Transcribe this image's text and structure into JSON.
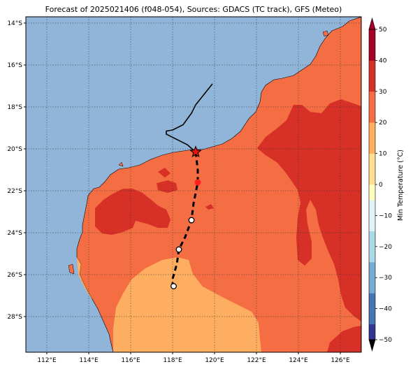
{
  "title": "Forecast of 2025021406 (f048-054), Sources: GDACS (TC track), GFS (Meteo)",
  "map": {
    "lon_range": [
      111,
      127
    ],
    "lat_range": [
      -29.7,
      -13.7
    ],
    "lon_ticks": [
      "112°E",
      "114°E",
      "116°E",
      "118°E",
      "120°E",
      "122°E",
      "124°E",
      "126°E"
    ],
    "lat_ticks": [
      "14°S",
      "16°S",
      "18°S",
      "20°S",
      "22°S",
      "24°S",
      "26°S",
      "28°S"
    ],
    "gridlines": true,
    "ocean_color": "#91b4d9"
  },
  "track": {
    "past_path": [
      [
        119.9,
        -16.9
      ],
      [
        119.1,
        -17.9
      ],
      [
        118.9,
        -18.3
      ],
      [
        118.5,
        -18.85
      ],
      [
        118.0,
        -19.1
      ],
      [
        117.7,
        -19.15
      ],
      [
        117.7,
        -19.3
      ],
      [
        118.7,
        -19.8
      ],
      [
        119.1,
        -20.15
      ]
    ],
    "forecast_path": [
      [
        119.1,
        -20.15
      ],
      [
        119.2,
        -21.0
      ],
      [
        119.2,
        -21.6
      ],
      [
        119.0,
        -22.6
      ],
      [
        118.9,
        -23.4
      ],
      [
        118.6,
        -24.2
      ],
      [
        118.3,
        -24.8
      ],
      [
        118.2,
        -25.5
      ],
      [
        118.0,
        -26.2
      ],
      [
        118.0,
        -26.6
      ]
    ],
    "current_position_marker": "red-star",
    "red_point": [
      119.2,
      -21.6
    ],
    "points": [
      [
        118.9,
        -23.4
      ],
      [
        118.3,
        -24.8
      ],
      [
        118.05,
        -26.55
      ]
    ]
  },
  "colorbar": {
    "label": "Min Temperature (°C)",
    "ticks": [
      "50",
      "40",
      "30",
      "20",
      "10",
      "0",
      "−10",
      "−20",
      "−30",
      "−40",
      "−50"
    ],
    "levels": [
      -50,
      -45,
      -40,
      -35,
      -30,
      -25,
      -20,
      -15,
      -10,
      -5,
      0,
      5,
      10,
      15,
      20,
      25,
      30,
      35,
      40,
      45,
      50
    ],
    "colors": [
      "#313695",
      "#4575b4",
      "#4575b4",
      "#74add1",
      "#74add1",
      "#abd9e9",
      "#abd9e9",
      "#e0f3f8",
      "#e0f3f8",
      "#ffffbf",
      "#fee090",
      "#fee090",
      "#fdae61",
      "#fdae61",
      "#f46d43",
      "#f46d43",
      "#d73027",
      "#d73027",
      "#a50026",
      "#a50026"
    ],
    "extend": "both"
  },
  "fields": {
    "band_10_20": "#fdae61",
    "band_20_30": "#f46d43",
    "band_30_40": "#d73027"
  }
}
